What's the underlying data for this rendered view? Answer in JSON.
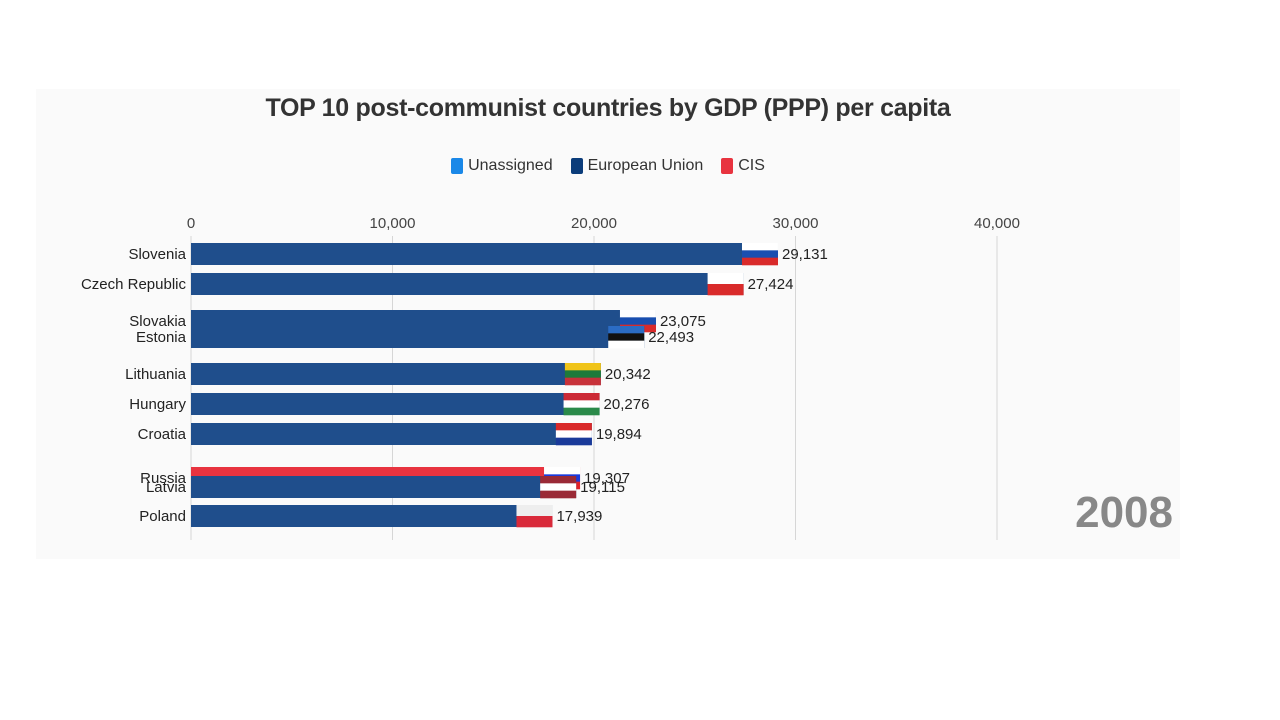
{
  "chart_data": {
    "type": "bar",
    "orientation": "horizontal",
    "title": "TOP 10 post-communist countries by GDP (PPP) per capita",
    "year": "2008",
    "xlim": [
      0,
      45000
    ],
    "ticks": [
      0,
      10000,
      20000,
      30000,
      40000
    ],
    "tick_labels": [
      "0",
      "10,000",
      "20,000",
      "30,000",
      "40,000"
    ],
    "legend": [
      {
        "name": "Unassigned",
        "color": "#1a88e8"
      },
      {
        "name": "European Union",
        "color": "#0b3c7a"
      },
      {
        "name": "CIS",
        "color": "#e8333f"
      }
    ],
    "bars": [
      {
        "name": "Slovenia",
        "value": 29131,
        "label": "29,131",
        "group": "European Union",
        "flag": [
          "#ffffff",
          "#1a4fb0",
          "#d92a2a"
        ]
      },
      {
        "name": "Czech Republic",
        "value": 27424,
        "label": "27,424",
        "group": "European Union",
        "flag": [
          "#ffffff",
          "#d92a2a"
        ]
      },
      {
        "name": "Slovakia",
        "value": 23075,
        "label": "23,075",
        "group": "European Union",
        "flag": [
          "#ffffff",
          "#1a4fb0",
          "#d92a2a"
        ]
      },
      {
        "name": "Estonia",
        "value": 22493,
        "label": "22,493",
        "group": "European Union",
        "flag": [
          "#2b6cc4",
          "#111111",
          "#ffffff"
        ]
      },
      {
        "name": "Lithuania",
        "value": 20342,
        "label": "20,342",
        "group": "European Union",
        "flag": [
          "#f0c419",
          "#1e7a3a",
          "#c8323a"
        ]
      },
      {
        "name": "Hungary",
        "value": 20276,
        "label": "20,276",
        "group": "European Union",
        "flag": [
          "#cc2a36",
          "#ffffff",
          "#2b8a4a"
        ]
      },
      {
        "name": "Croatia",
        "value": 19894,
        "label": "19,894",
        "group": "European Union",
        "flag": [
          "#d92a2a",
          "#ffffff",
          "#1a3a9a"
        ]
      },
      {
        "name": "Russia",
        "value": 19307,
        "label": "19,307",
        "group": "CIS",
        "flag": [
          "#ffffff",
          "#1a3adc",
          "#e0222a"
        ]
      },
      {
        "name": "Latvia",
        "value": 19115,
        "label": "19,115",
        "group": "European Union",
        "flag": [
          "#9a2a36",
          "#ffffff",
          "#9a2a36"
        ]
      },
      {
        "name": "Poland",
        "value": 17939,
        "label": "17,939",
        "group": "European Union",
        "flag": [
          "#eeeeee",
          "#d92a3a"
        ]
      }
    ]
  }
}
